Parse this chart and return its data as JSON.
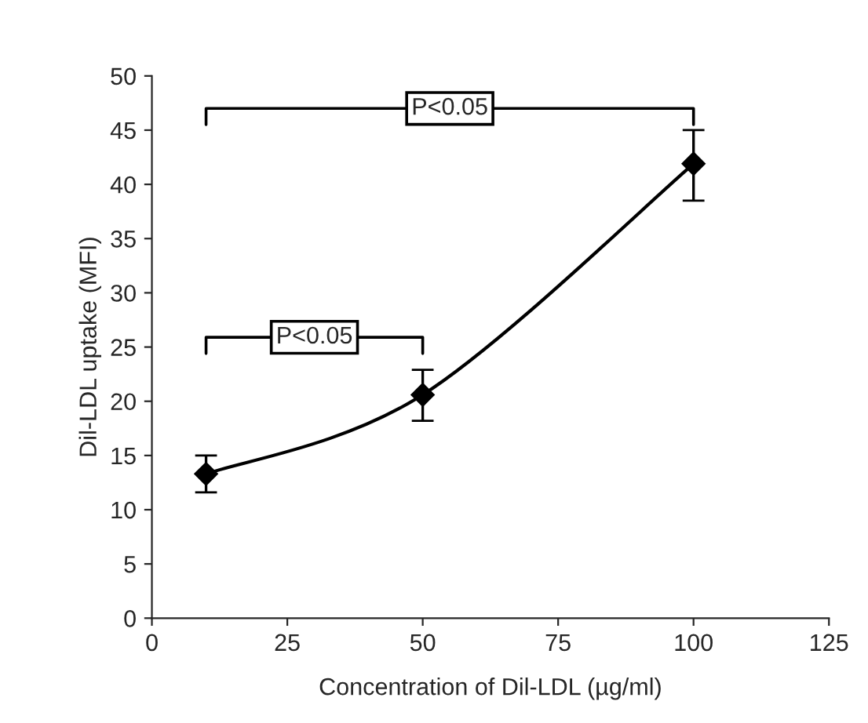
{
  "chart_data": {
    "type": "line",
    "xlabel": "Concentration of Dil-LDL (µg/ml)",
    "ylabel": "Dil-LDL uptake (MFI)",
    "x": [
      10,
      50,
      100
    ],
    "series": [
      {
        "color": "#000000",
        "values": [
          13.3,
          20.6,
          41.9
        ],
        "errors": [
          [
            11.6,
            15.0
          ],
          [
            18.2,
            22.9
          ],
          [
            38.5,
            45.0
          ]
        ]
      }
    ],
    "xlim": [
      0,
      125
    ],
    "xticks": [
      0,
      25,
      50,
      75,
      100,
      125
    ],
    "ylim": [
      0,
      50
    ],
    "yticks": [
      0,
      5,
      10,
      15,
      20,
      25,
      30,
      35,
      40,
      45,
      50
    ],
    "marker": "diamond",
    "line_style": "solid",
    "grid": false,
    "annotations": [
      "P<0.05",
      "P<0.05"
    ]
  }
}
